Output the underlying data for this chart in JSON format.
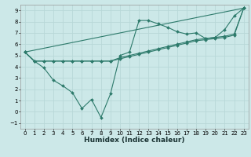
{
  "xlabel": "Humidex (Indice chaleur)",
  "bg_color": "#cce8e8",
  "grid_color": "#b8d8d8",
  "line_color": "#2d7a6b",
  "xlim": [
    -0.5,
    23.5
  ],
  "ylim": [
    -1.5,
    9.5
  ],
  "xticks": [
    0,
    1,
    2,
    3,
    4,
    5,
    6,
    7,
    8,
    9,
    10,
    11,
    12,
    13,
    14,
    15,
    16,
    17,
    18,
    19,
    20,
    21,
    22,
    23
  ],
  "yticks": [
    -1,
    0,
    1,
    2,
    3,
    4,
    5,
    6,
    7,
    8,
    9
  ],
  "series1_x": [
    0,
    1,
    2,
    3,
    4,
    5,
    6,
    7,
    8,
    9,
    10,
    11,
    12,
    13,
    14,
    15,
    16,
    17,
    18,
    19,
    20,
    21,
    22,
    23
  ],
  "series1_y": [
    5.3,
    4.5,
    3.9,
    2.8,
    2.3,
    1.7,
    0.3,
    1.1,
    -0.5,
    1.6,
    5.0,
    5.3,
    8.1,
    8.1,
    7.8,
    7.5,
    7.1,
    6.9,
    7.0,
    6.5,
    6.6,
    7.3,
    8.5,
    9.2
  ],
  "series2_x": [
    0,
    1,
    2,
    3,
    4,
    5,
    6,
    7,
    8,
    9,
    10,
    11,
    12,
    13,
    14,
    15,
    16,
    17,
    18,
    19,
    20,
    21,
    22,
    23
  ],
  "series2_y": [
    5.3,
    4.5,
    4.5,
    4.5,
    4.5,
    4.5,
    4.5,
    4.5,
    4.5,
    4.5,
    4.8,
    5.0,
    5.2,
    5.4,
    5.6,
    5.8,
    6.0,
    6.2,
    6.4,
    6.5,
    6.6,
    6.7,
    6.9,
    9.2
  ],
  "series3_x": [
    0,
    1,
    2,
    3,
    4,
    5,
    6,
    7,
    8,
    9,
    10,
    11,
    12,
    13,
    14,
    15,
    16,
    17,
    18,
    19,
    20,
    21,
    22,
    23
  ],
  "series3_y": [
    5.3,
    4.5,
    4.5,
    4.5,
    4.5,
    4.5,
    4.5,
    4.5,
    4.5,
    4.5,
    4.7,
    4.9,
    5.1,
    5.3,
    5.5,
    5.7,
    5.9,
    6.1,
    6.3,
    6.4,
    6.5,
    6.6,
    6.8,
    9.2
  ],
  "series4_x": [
    0,
    23
  ],
  "series4_y": [
    5.3,
    9.2
  ],
  "xlabel_fontsize": 6.5,
  "tick_fontsize": 5.0
}
